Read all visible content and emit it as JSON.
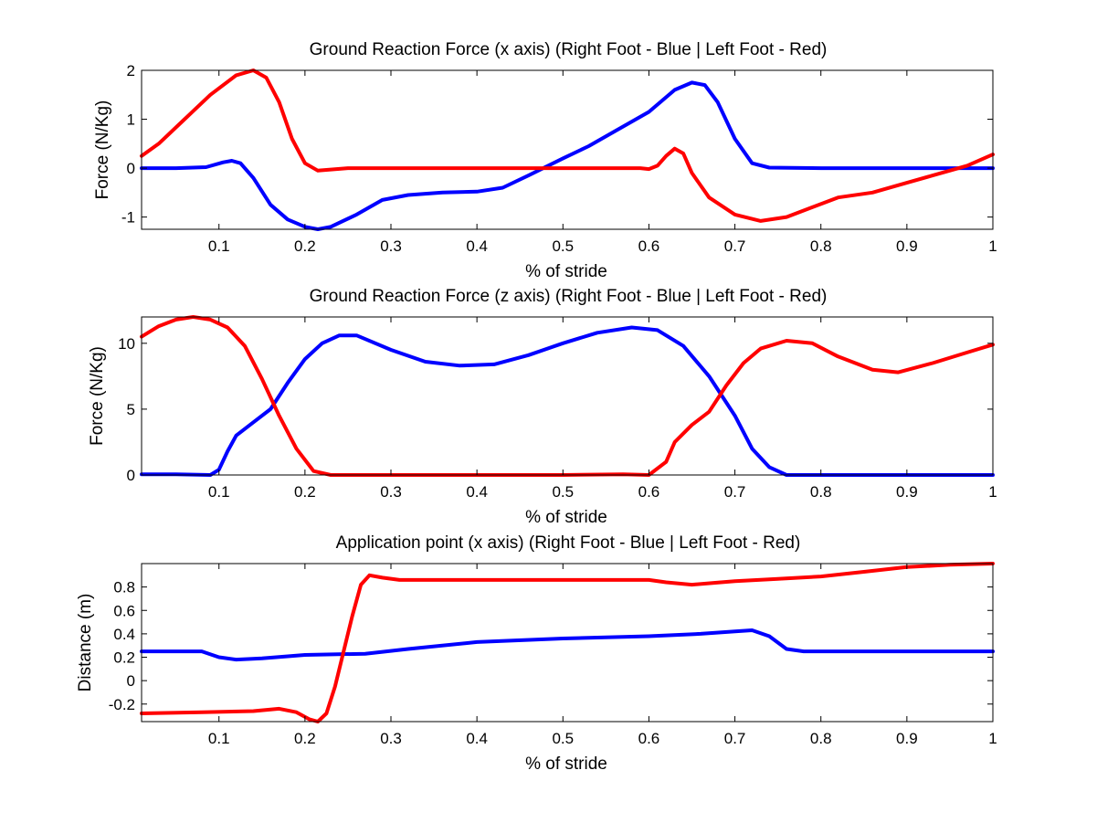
{
  "chart_data": [
    {
      "type": "line",
      "title": "Ground Reaction Force (x axis) (Right Foot - Blue | Left Foot - Red)",
      "xlabel": "% of stride",
      "ylabel": "Force (N/Kg)",
      "xlim": [
        0.01,
        1.0
      ],
      "ylim": [
        -1.25,
        2.0
      ],
      "xticks": [
        0.1,
        0.2,
        0.3,
        0.4,
        0.5,
        0.6,
        0.7,
        0.8,
        0.9,
        1.0
      ],
      "xtick_labels": [
        "0.1",
        "0.2",
        "0.3",
        "0.4",
        "0.5",
        "0.6",
        "0.7",
        "0.8",
        "0.9",
        "1"
      ],
      "yticks": [
        -1,
        0,
        1,
        2
      ],
      "ytick_labels": [
        "-1",
        "0",
        "1",
        "2"
      ],
      "grid": false,
      "series": [
        {
          "color": "#0000ff",
          "points": [
            [
              0.01,
              0
            ],
            [
              0.05,
              0
            ],
            [
              0.085,
              0.02
            ],
            [
              0.105,
              0.12
            ],
            [
              0.115,
              0.15
            ],
            [
              0.125,
              0.1
            ],
            [
              0.14,
              -0.2
            ],
            [
              0.16,
              -0.75
            ],
            [
              0.18,
              -1.05
            ],
            [
              0.2,
              -1.2
            ],
            [
              0.215,
              -1.25
            ],
            [
              0.23,
              -1.2
            ],
            [
              0.26,
              -0.95
            ],
            [
              0.29,
              -0.65
            ],
            [
              0.32,
              -0.55
            ],
            [
              0.36,
              -0.5
            ],
            [
              0.4,
              -0.48
            ],
            [
              0.43,
              -0.4
            ],
            [
              0.46,
              -0.15
            ],
            [
              0.5,
              0.2
            ],
            [
              0.53,
              0.45
            ],
            [
              0.56,
              0.75
            ],
            [
              0.6,
              1.15
            ],
            [
              0.63,
              1.6
            ],
            [
              0.65,
              1.75
            ],
            [
              0.665,
              1.7
            ],
            [
              0.68,
              1.35
            ],
            [
              0.7,
              0.6
            ],
            [
              0.72,
              0.1
            ],
            [
              0.74,
              0.01
            ],
            [
              0.8,
              0
            ],
            [
              1.0,
              0
            ]
          ]
        },
        {
          "color": "#ff0000",
          "points": [
            [
              0.01,
              0.25
            ],
            [
              0.03,
              0.5
            ],
            [
              0.06,
              1.0
            ],
            [
              0.09,
              1.5
            ],
            [
              0.12,
              1.9
            ],
            [
              0.14,
              2.0
            ],
            [
              0.155,
              1.85
            ],
            [
              0.17,
              1.35
            ],
            [
              0.185,
              0.6
            ],
            [
              0.2,
              0.1
            ],
            [
              0.215,
              -0.05
            ],
            [
              0.25,
              0
            ],
            [
              0.3,
              0
            ],
            [
              0.4,
              0
            ],
            [
              0.5,
              0
            ],
            [
              0.59,
              0
            ],
            [
              0.6,
              -0.02
            ],
            [
              0.61,
              0.05
            ],
            [
              0.62,
              0.25
            ],
            [
              0.63,
              0.4
            ],
            [
              0.64,
              0.3
            ],
            [
              0.65,
              -0.1
            ],
            [
              0.67,
              -0.6
            ],
            [
              0.7,
              -0.95
            ],
            [
              0.73,
              -1.08
            ],
            [
              0.76,
              -1.0
            ],
            [
              0.79,
              -0.8
            ],
            [
              0.82,
              -0.6
            ],
            [
              0.86,
              -0.5
            ],
            [
              0.9,
              -0.3
            ],
            [
              0.93,
              -0.15
            ],
            [
              0.97,
              0.05
            ],
            [
              1.0,
              0.28
            ]
          ]
        }
      ]
    },
    {
      "type": "line",
      "title": "Ground Reaction Force (z axis) (Right Foot - Blue | Left Foot - Red)",
      "xlabel": "% of stride",
      "ylabel": "Force (N/Kg)",
      "xlim": [
        0.01,
        1.0
      ],
      "ylim": [
        0,
        12
      ],
      "xticks": [
        0.1,
        0.2,
        0.3,
        0.4,
        0.5,
        0.6,
        0.7,
        0.8,
        0.9,
        1.0
      ],
      "xtick_labels": [
        "0.1",
        "0.2",
        "0.3",
        "0.4",
        "0.5",
        "0.6",
        "0.7",
        "0.8",
        "0.9",
        "1"
      ],
      "yticks": [
        0,
        5,
        10
      ],
      "ytick_labels": [
        "0",
        "5",
        "10"
      ],
      "grid": false,
      "series": [
        {
          "color": "#0000ff",
          "points": [
            [
              0.01,
              0.05
            ],
            [
              0.05,
              0.05
            ],
            [
              0.09,
              0
            ],
            [
              0.1,
              0.4
            ],
            [
              0.11,
              1.8
            ],
            [
              0.12,
              3.0
            ],
            [
              0.14,
              4.0
            ],
            [
              0.16,
              5.0
            ],
            [
              0.18,
              7.0
            ],
            [
              0.2,
              8.8
            ],
            [
              0.22,
              10.0
            ],
            [
              0.24,
              10.6
            ],
            [
              0.26,
              10.6
            ],
            [
              0.3,
              9.5
            ],
            [
              0.34,
              8.6
            ],
            [
              0.38,
              8.3
            ],
            [
              0.42,
              8.4
            ],
            [
              0.46,
              9.1
            ],
            [
              0.5,
              10.0
            ],
            [
              0.54,
              10.8
            ],
            [
              0.58,
              11.2
            ],
            [
              0.61,
              11.0
            ],
            [
              0.64,
              9.8
            ],
            [
              0.67,
              7.5
            ],
            [
              0.7,
              4.5
            ],
            [
              0.72,
              2.0
            ],
            [
              0.74,
              0.6
            ],
            [
              0.76,
              0
            ],
            [
              0.8,
              0
            ],
            [
              1.0,
              0
            ]
          ]
        },
        {
          "color": "#ff0000",
          "points": [
            [
              0.01,
              10.5
            ],
            [
              0.03,
              11.3
            ],
            [
              0.05,
              11.8
            ],
            [
              0.07,
              12.0
            ],
            [
              0.09,
              11.8
            ],
            [
              0.11,
              11.2
            ],
            [
              0.13,
              9.8
            ],
            [
              0.15,
              7.3
            ],
            [
              0.17,
              4.5
            ],
            [
              0.19,
              2.0
            ],
            [
              0.21,
              0.3
            ],
            [
              0.23,
              0
            ],
            [
              0.3,
              0
            ],
            [
              0.4,
              0
            ],
            [
              0.5,
              0
            ],
            [
              0.57,
              0.05
            ],
            [
              0.6,
              0
            ],
            [
              0.62,
              1.0
            ],
            [
              0.63,
              2.5
            ],
            [
              0.65,
              3.8
            ],
            [
              0.67,
              4.8
            ],
            [
              0.69,
              6.8
            ],
            [
              0.71,
              8.5
            ],
            [
              0.73,
              9.6
            ],
            [
              0.76,
              10.2
            ],
            [
              0.79,
              10.0
            ],
            [
              0.82,
              9.0
            ],
            [
              0.86,
              8.0
            ],
            [
              0.89,
              7.8
            ],
            [
              0.93,
              8.5
            ],
            [
              0.97,
              9.3
            ],
            [
              1.0,
              9.9
            ]
          ]
        }
      ]
    },
    {
      "type": "line",
      "title": "Application point (x axis) (Right Foot - Blue | Left Foot - Red)",
      "xlabel": "% of stride",
      "ylabel": "Distance (m)",
      "xlim": [
        0.01,
        1.0
      ],
      "ylim": [
        -0.35,
        1.0
      ],
      "xticks": [
        0.1,
        0.2,
        0.3,
        0.4,
        0.5,
        0.6,
        0.7,
        0.8,
        0.9,
        1.0
      ],
      "xtick_labels": [
        "0.1",
        "0.2",
        "0.3",
        "0.4",
        "0.5",
        "0.6",
        "0.7",
        "0.8",
        "0.9",
        "1"
      ],
      "yticks": [
        -0.2,
        0,
        0.2,
        0.4,
        0.6,
        0.8
      ],
      "ytick_labels": [
        "-0.2",
        "0",
        "0.2",
        "0.4",
        "0.6",
        "0.8"
      ],
      "grid": false,
      "series": [
        {
          "color": "#0000ff",
          "points": [
            [
              0.01,
              0.25
            ],
            [
              0.08,
              0.25
            ],
            [
              0.1,
              0.2
            ],
            [
              0.12,
              0.18
            ],
            [
              0.15,
              0.19
            ],
            [
              0.2,
              0.22
            ],
            [
              0.27,
              0.23
            ],
            [
              0.32,
              0.27
            ],
            [
              0.4,
              0.33
            ],
            [
              0.5,
              0.36
            ],
            [
              0.6,
              0.38
            ],
            [
              0.66,
              0.4
            ],
            [
              0.7,
              0.42
            ],
            [
              0.72,
              0.43
            ],
            [
              0.74,
              0.38
            ],
            [
              0.76,
              0.27
            ],
            [
              0.78,
              0.25
            ],
            [
              0.8,
              0.25
            ],
            [
              1.0,
              0.25
            ]
          ]
        },
        {
          "color": "#ff0000",
          "points": [
            [
              0.01,
              -0.28
            ],
            [
              0.08,
              -0.27
            ],
            [
              0.14,
              -0.26
            ],
            [
              0.17,
              -0.24
            ],
            [
              0.19,
              -0.27
            ],
            [
              0.205,
              -0.33
            ],
            [
              0.215,
              -0.35
            ],
            [
              0.225,
              -0.28
            ],
            [
              0.235,
              -0.05
            ],
            [
              0.245,
              0.25
            ],
            [
              0.255,
              0.55
            ],
            [
              0.265,
              0.82
            ],
            [
              0.275,
              0.9
            ],
            [
              0.29,
              0.88
            ],
            [
              0.31,
              0.86
            ],
            [
              0.4,
              0.86
            ],
            [
              0.5,
              0.86
            ],
            [
              0.6,
              0.86
            ],
            [
              0.62,
              0.84
            ],
            [
              0.65,
              0.82
            ],
            [
              0.7,
              0.85
            ],
            [
              0.75,
              0.87
            ],
            [
              0.8,
              0.89
            ],
            [
              0.85,
              0.93
            ],
            [
              0.9,
              0.97
            ],
            [
              0.95,
              0.99
            ],
            [
              1.0,
              1.0
            ]
          ]
        }
      ]
    }
  ]
}
